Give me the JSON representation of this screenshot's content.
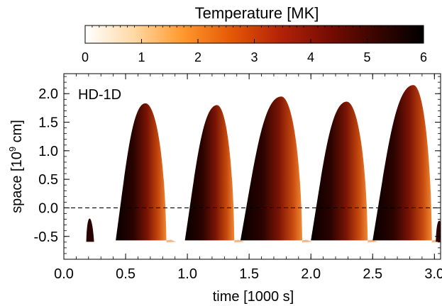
{
  "chart_data": {
    "type": "heatmap",
    "panel_label": "HD-1D",
    "xlabel": "time [1000 s]",
    "ylabel_main": "space [10",
    "ylabel_sup": "9",
    "ylabel_tail": " cm]",
    "xlim": [
      0.0,
      3.05
    ],
    "ylim": [
      -0.9,
      2.35
    ],
    "x_ticks": [
      "0.0",
      "0.5",
      "1.0",
      "1.5",
      "2.0",
      "2.5",
      "3.0"
    ],
    "y_ticks": [
      "-0.5",
      "0.0",
      "0.5",
      "1.0",
      "1.5",
      "2.0"
    ],
    "reference_line_y": 0.0,
    "colorbar": {
      "title": "Temperature [MK]",
      "range": [
        0,
        6
      ],
      "ticks": [
        "0",
        "1",
        "2",
        "3",
        "4",
        "5",
        "6"
      ],
      "colors": [
        "#ffffff",
        "#ffd9a6",
        "#ff9a2e",
        "#e55a05",
        "#b62308",
        "#7a0d03",
        "#3a0500",
        "#000000"
      ]
    },
    "loops": [
      {
        "start": 0.42,
        "peak_time": 0.66,
        "end": 0.83,
        "peak_height": 1.83
      },
      {
        "start": 0.98,
        "peak_time": 1.24,
        "end": 1.38,
        "peak_height": 1.8
      },
      {
        "start": 1.43,
        "peak_time": 1.76,
        "end": 1.93,
        "peak_height": 1.95
      },
      {
        "start": 2.0,
        "peak_time": 2.29,
        "end": 2.46,
        "peak_height": 1.86
      },
      {
        "start": 2.5,
        "peak_time": 2.83,
        "end": 2.98,
        "peak_height": 2.15
      }
    ],
    "small_spikes": [
      {
        "time": 0.21,
        "height": -0.05
      },
      {
        "time": 3.04,
        "height": -0.1
      }
    ],
    "base_height": -0.57
  }
}
